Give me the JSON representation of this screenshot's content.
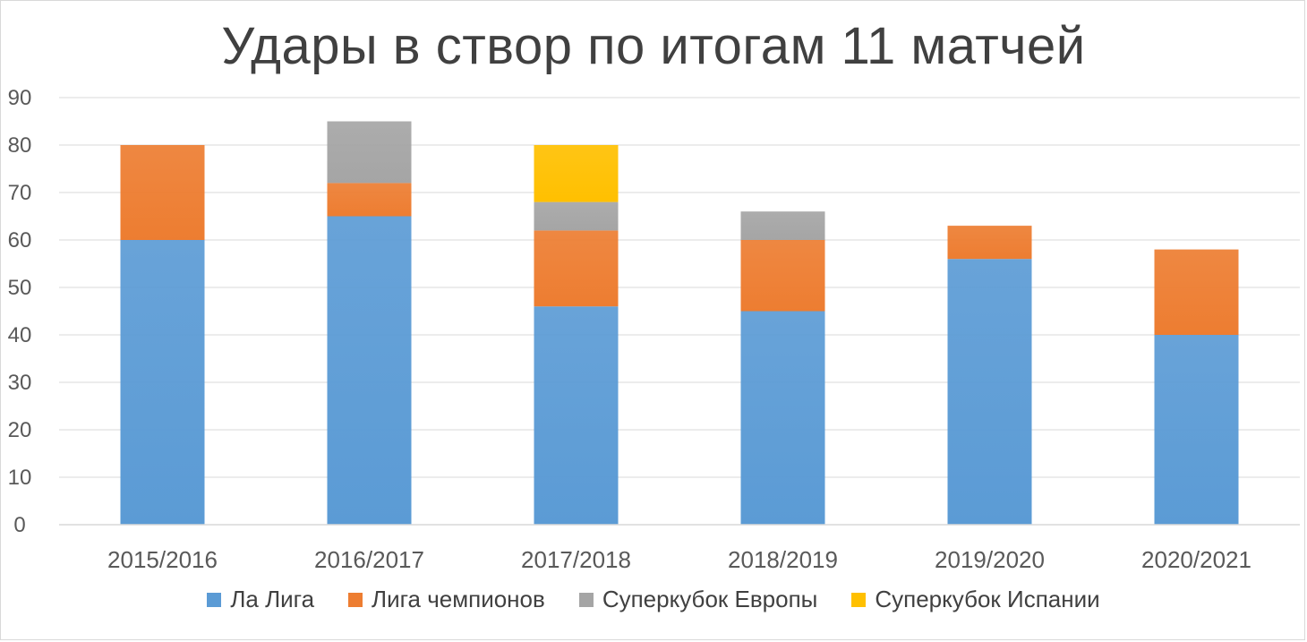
{
  "chart_data": {
    "type": "bar",
    "stacked": true,
    "title": "Удары в створ по итогам 11 матчей",
    "categories": [
      "2015/2016",
      "2016/2017",
      "2017/2018",
      "2018/2019",
      "2019/2020",
      "2020/2021"
    ],
    "series": [
      {
        "name": "Ла Лига",
        "color": "#5b9bd5",
        "values": [
          60,
          65,
          46,
          45,
          56,
          40
        ]
      },
      {
        "name": "Лига чемпионов",
        "color": "#ed7d31",
        "values": [
          20,
          7,
          16,
          15,
          7,
          18
        ]
      },
      {
        "name": "Суперкубок Европы",
        "color": "#a5a5a5",
        "values": [
          0,
          13,
          6,
          6,
          0,
          0
        ]
      },
      {
        "name": "Суперкубок Испании",
        "color": "#ffc000",
        "values": [
          0,
          0,
          12,
          0,
          0,
          0
        ]
      }
    ],
    "ylim": [
      0,
      90
    ],
    "yticks": [
      0,
      10,
      20,
      30,
      40,
      50,
      60,
      70,
      80,
      90
    ],
    "grid": true,
    "legend_position": "bottom"
  }
}
